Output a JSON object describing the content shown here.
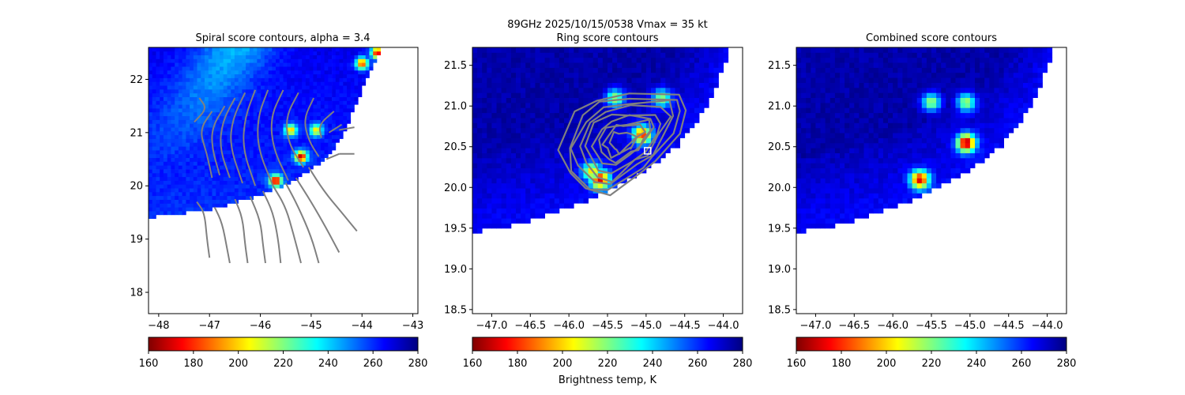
{
  "figure": {
    "suptitle": "89GHz  2025/10/15/0538    Vmax = 35 kt",
    "colorbar_label": "Brightness temp, K"
  },
  "colormap": {
    "name": "jet",
    "stops": [
      "#7f0000",
      "#ff0000",
      "#ff8000",
      "#ffff00",
      "#80ff80",
      "#00ffff",
      "#0080ff",
      "#0000ff",
      "#00007f"
    ],
    "contour_color": "#808080",
    "center_marker_color": "#ffffff"
  },
  "chart_data": [
    {
      "type": "heatmap",
      "title": "Spiral score contours, alpha =  3.4",
      "xlim": [
        -48.2,
        -42.9
      ],
      "ylim": [
        17.6,
        22.6
      ],
      "xticks": [
        -48,
        -47,
        -46,
        -45,
        -44,
        -43
      ],
      "yticks": [
        18,
        19,
        20,
        21,
        22
      ],
      "colorbar": {
        "range": [
          160,
          280
        ],
        "ticks": [
          160,
          180,
          200,
          220,
          240,
          260,
          280
        ]
      },
      "swath_edge": [
        [
          -48.2,
          19.4
        ],
        [
          -47.0,
          19.55
        ],
        [
          -46.0,
          19.82
        ],
        [
          -45.3,
          20.1
        ],
        [
          -44.6,
          20.6
        ],
        [
          -44.3,
          21.1
        ],
        [
          -44.0,
          21.8
        ],
        [
          -43.6,
          22.6
        ]
      ],
      "hotspots": [
        {
          "lon": -45.7,
          "lat": 20.1,
          "temp": 165
        },
        {
          "lon": -45.2,
          "lat": 20.55,
          "temp": 165
        },
        {
          "lon": -45.4,
          "lat": 21.05,
          "temp": 195
        },
        {
          "lon": -44.9,
          "lat": 21.05,
          "temp": 200
        },
        {
          "lon": -44.0,
          "lat": 22.3,
          "temp": 180
        },
        {
          "lon": -43.7,
          "lat": 22.5,
          "temp": 170
        }
      ],
      "contours": [
        [
          [
            -47.2,
            21.65
          ],
          [
            -47.05,
            21.45
          ],
          [
            -47.3,
            21.2
          ]
        ],
        [
          [
            -46.95,
            21.4
          ],
          [
            -47.2,
            21.05
          ],
          [
            -47.05,
            20.6
          ],
          [
            -46.95,
            20.15
          ]
        ],
        [
          [
            -46.7,
            21.5
          ],
          [
            -46.95,
            21.1
          ],
          [
            -46.95,
            20.7
          ],
          [
            -46.8,
            20.2
          ]
        ],
        [
          [
            -46.5,
            21.65
          ],
          [
            -46.75,
            21.2
          ],
          [
            -46.8,
            20.7
          ],
          [
            -46.6,
            20.15
          ]
        ],
        [
          [
            -46.3,
            21.75
          ],
          [
            -46.55,
            21.25
          ],
          [
            -46.6,
            20.75
          ],
          [
            -46.35,
            20.05
          ]
        ],
        [
          [
            -46.1,
            21.8
          ],
          [
            -46.3,
            21.3
          ],
          [
            -46.35,
            20.7
          ],
          [
            -46.1,
            20.0
          ]
        ],
        [
          [
            -45.85,
            21.8
          ],
          [
            -46.05,
            21.3
          ],
          [
            -46.05,
            20.7
          ],
          [
            -45.75,
            20.0
          ]
        ],
        [
          [
            -45.55,
            21.8
          ],
          [
            -45.8,
            21.3
          ],
          [
            -45.75,
            20.7
          ],
          [
            -45.45,
            20.1
          ]
        ],
        [
          [
            -45.25,
            21.75
          ],
          [
            -45.5,
            21.3
          ],
          [
            -45.45,
            20.8
          ],
          [
            -45.15,
            20.35
          ]
        ],
        [
          [
            -44.95,
            21.65
          ],
          [
            -45.15,
            21.25
          ],
          [
            -45.05,
            20.85
          ],
          [
            -44.85,
            20.55
          ]
        ],
        [
          [
            -44.55,
            21.4
          ],
          [
            -44.85,
            21.15
          ],
          [
            -44.8,
            20.9
          ]
        ],
        [
          [
            -44.4,
            21.15
          ],
          [
            -44.65,
            21.0
          ]
        ],
        [
          [
            -44.15,
            21.1
          ],
          [
            -44.45,
            21.05
          ]
        ],
        [
          [
            -44.15,
            20.6
          ],
          [
            -44.45,
            20.6
          ]
        ],
        [
          [
            -44.45,
            20.6
          ],
          [
            -44.7,
            20.5
          ]
        ],
        [
          [
            -47.25,
            19.7
          ],
          [
            -47.1,
            19.5
          ],
          [
            -47.05,
            19.0
          ],
          [
            -47.0,
            18.65
          ]
        ],
        [
          [
            -46.9,
            19.6
          ],
          [
            -46.75,
            19.3
          ],
          [
            -46.65,
            18.8
          ],
          [
            -46.6,
            18.55
          ]
        ],
        [
          [
            -46.5,
            19.75
          ],
          [
            -46.35,
            19.4
          ],
          [
            -46.3,
            18.9
          ],
          [
            -46.25,
            18.55
          ]
        ],
        [
          [
            -46.2,
            19.8
          ],
          [
            -46.0,
            19.35
          ],
          [
            -45.95,
            18.9
          ],
          [
            -45.9,
            18.55
          ]
        ],
        [
          [
            -45.95,
            19.9
          ],
          [
            -45.75,
            19.5
          ],
          [
            -45.65,
            19.0
          ],
          [
            -45.6,
            18.55
          ]
        ],
        [
          [
            -45.75,
            20.0
          ],
          [
            -45.5,
            19.6
          ],
          [
            -45.35,
            19.1
          ],
          [
            -45.2,
            18.55
          ]
        ],
        [
          [
            -45.5,
            20.05
          ],
          [
            -45.25,
            19.6
          ],
          [
            -45.0,
            19.05
          ],
          [
            -44.85,
            18.55
          ]
        ],
        [
          [
            -45.3,
            20.15
          ],
          [
            -45.0,
            19.7
          ],
          [
            -44.7,
            19.2
          ],
          [
            -44.45,
            18.75
          ]
        ],
        [
          [
            -45.05,
            20.35
          ],
          [
            -44.75,
            19.9
          ],
          [
            -44.4,
            19.5
          ],
          [
            -44.1,
            19.15
          ]
        ]
      ]
    },
    {
      "type": "heatmap",
      "title": "Ring score contours",
      "xlim": [
        -47.25,
        -43.75
      ],
      "ylim": [
        18.45,
        21.72
      ],
      "xticks": [
        -47.0,
        -46.5,
        -46.0,
        -45.5,
        -45.0,
        -44.5,
        -44.0
      ],
      "yticks": [
        18.5,
        19.0,
        19.5,
        20.0,
        20.5,
        21.0,
        21.5
      ],
      "xtick_labels": [
        "−47.0",
        "−46.5",
        "−46.0",
        "−45.5",
        "−45.0",
        "−44.5",
        "−44.0"
      ],
      "ytick_labels": [
        "18.5",
        "19.0",
        "19.5",
        "20.0",
        "20.5",
        "21.0",
        "21.5"
      ],
      "colorbar": {
        "range": [
          160,
          280
        ],
        "ticks": [
          160,
          180,
          200,
          220,
          240,
          260,
          280
        ]
      },
      "swath_edge": [
        [
          -47.25,
          19.45
        ],
        [
          -46.6,
          19.55
        ],
        [
          -46.0,
          19.75
        ],
        [
          -45.5,
          19.95
        ],
        [
          -45.0,
          20.2
        ],
        [
          -44.6,
          20.5
        ],
        [
          -44.2,
          21.0
        ],
        [
          -43.9,
          21.72
        ]
      ],
      "center": {
        "lon": -44.98,
        "lat": 20.45
      },
      "hotspots": [
        {
          "lon": -45.6,
          "lat": 20.1,
          "temp": 170
        },
        {
          "lon": -45.7,
          "lat": 20.2,
          "temp": 200
        },
        {
          "lon": -45.05,
          "lat": 20.65,
          "temp": 180
        },
        {
          "lon": -45.4,
          "lat": 21.1,
          "temp": 215
        },
        {
          "lon": -44.8,
          "lat": 21.1,
          "temp": 215
        }
      ],
      "ring_region": [
        [
          -46.1,
          20.5
        ],
        [
          -45.9,
          20.9
        ],
        [
          -45.6,
          21.1
        ],
        [
          -45.2,
          21.15
        ],
        [
          -44.55,
          21.15
        ],
        [
          -44.45,
          20.95
        ],
        [
          -44.6,
          20.65
        ],
        [
          -44.85,
          20.35
        ],
        [
          -45.05,
          20.2
        ],
        [
          -45.5,
          19.9
        ],
        [
          -45.8,
          19.95
        ],
        [
          -46.0,
          20.15
        ]
      ]
    },
    {
      "type": "heatmap",
      "title": "Combined score contours",
      "xlim": [
        -47.25,
        -43.75
      ],
      "ylim": [
        18.45,
        21.72
      ],
      "xticks": [
        -47.0,
        -46.5,
        -46.0,
        -45.5,
        -45.0,
        -44.5,
        -44.0
      ],
      "yticks": [
        18.5,
        19.0,
        19.5,
        20.0,
        20.5,
        21.0,
        21.5
      ],
      "xtick_labels": [
        "−47.0",
        "−46.5",
        "−46.0",
        "−45.5",
        "−45.0",
        "−44.5",
        "−44.0"
      ],
      "ytick_labels": [
        "18.5",
        "19.0",
        "19.5",
        "20.0",
        "20.5",
        "21.0",
        "21.5"
      ],
      "colorbar": {
        "range": [
          160,
          280
        ],
        "ticks": [
          160,
          180,
          200,
          220,
          240,
          260,
          280
        ]
      },
      "swath_edge": [
        [
          -47.25,
          19.45
        ],
        [
          -46.6,
          19.55
        ],
        [
          -46.0,
          19.75
        ],
        [
          -45.5,
          19.95
        ],
        [
          -45.0,
          20.2
        ],
        [
          -44.6,
          20.5
        ],
        [
          -44.2,
          21.0
        ],
        [
          -43.9,
          21.72
        ]
      ],
      "hotspots": [
        {
          "lon": -45.65,
          "lat": 20.1,
          "temp": 170
        },
        {
          "lon": -45.05,
          "lat": 20.55,
          "temp": 162
        },
        {
          "lon": -45.5,
          "lat": 21.05,
          "temp": 215
        },
        {
          "lon": -45.05,
          "lat": 21.05,
          "temp": 215
        }
      ]
    }
  ]
}
